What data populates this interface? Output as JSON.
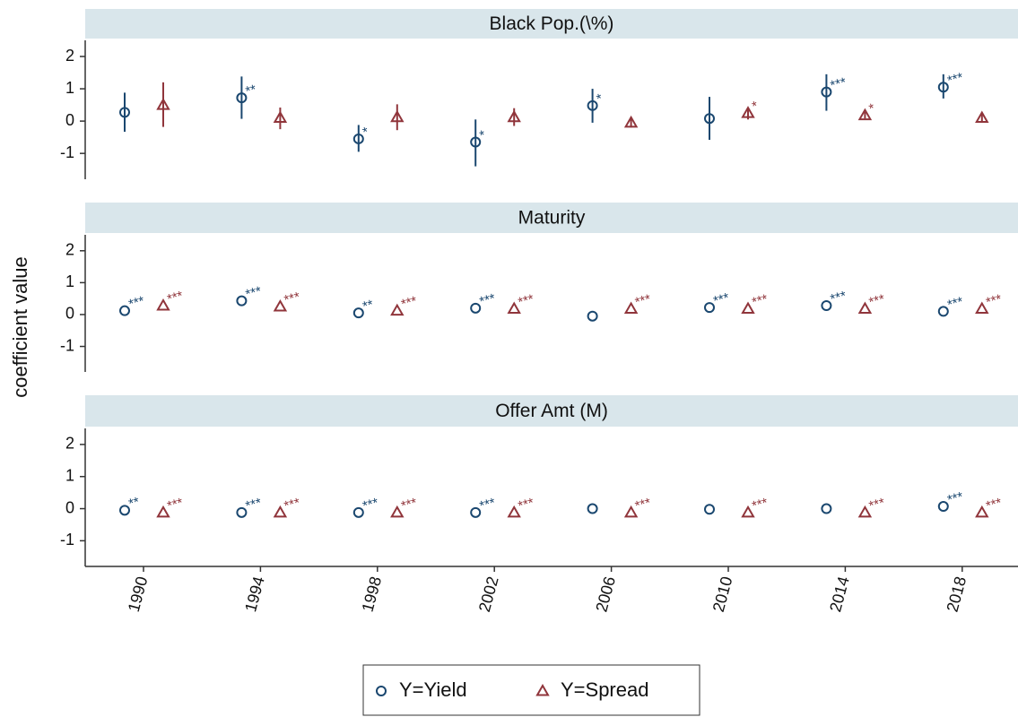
{
  "chart_data": {
    "type": "scatter",
    "ylabel": "coefficient value",
    "categories": [
      "1990",
      "1994",
      "1998",
      "2002",
      "2006",
      "2010",
      "2014",
      "2018"
    ],
    "ylim": [
      -1.8,
      2.5
    ],
    "yticks": [
      -1,
      0,
      1,
      2
    ],
    "series": [
      {
        "name": "Y=Yield",
        "color": "#1a476f",
        "marker": "circle"
      },
      {
        "name": "Y=Spread",
        "color": "#90353b",
        "marker": "triangle"
      }
    ],
    "panels": [
      {
        "title": "Black Pop.(\\%)",
        "series": [
          {
            "values": [
              0.27,
              0.72,
              -0.55,
              -0.65,
              0.48,
              0.08,
              0.9,
              1.05
            ],
            "ci_low": [
              -0.33,
              0.07,
              -0.95,
              -1.4,
              -0.05,
              -0.58,
              0.32,
              0.7
            ],
            "ci_high": [
              0.88,
              1.38,
              -0.12,
              0.05,
              1.0,
              0.75,
              1.45,
              1.45
            ],
            "stars": [
              null,
              "**",
              "*",
              "*",
              "*",
              null,
              "***",
              "***"
            ]
          },
          {
            "values": [
              0.5,
              0.1,
              0.12,
              0.12,
              -0.05,
              0.25,
              0.18,
              0.1
            ],
            "ci_low": [
              -0.18,
              -0.25,
              -0.28,
              -0.15,
              -0.2,
              0.05,
              0.08,
              -0.05
            ],
            "ci_high": [
              1.2,
              0.42,
              0.52,
              0.4,
              0.1,
              0.42,
              0.28,
              0.25
            ],
            "stars": [
              null,
              null,
              null,
              null,
              null,
              "*",
              "*",
              null
            ]
          }
        ]
      },
      {
        "title": "Maturity",
        "series": [
          {
            "values": [
              0.12,
              0.43,
              0.05,
              0.2,
              -0.05,
              0.22,
              0.28,
              0.1
            ],
            "stars": [
              "***",
              "***",
              "**",
              "***",
              null,
              "***",
              "***",
              "***"
            ]
          },
          {
            "values": [
              0.28,
              0.25,
              0.12,
              0.18,
              0.18,
              0.18,
              0.18,
              0.18
            ],
            "stars": [
              "***",
              "***",
              "***",
              "***",
              "***",
              "***",
              "***",
              "***"
            ]
          }
        ]
      },
      {
        "title": "Offer Amt (M)",
        "series": [
          {
            "values": [
              -0.05,
              -0.12,
              -0.12,
              -0.12,
              0,
              -0.02,
              0,
              0.07
            ],
            "stars": [
              "**",
              "***",
              "***",
              "***",
              null,
              null,
              null,
              "***"
            ]
          },
          {
            "values": [
              -0.12,
              -0.12,
              -0.12,
              -0.12,
              -0.12,
              -0.12,
              -0.12,
              -0.12
            ],
            "stars": [
              "***",
              "***",
              "***",
              "***",
              "***",
              "***",
              "***",
              "***"
            ]
          }
        ]
      }
    ]
  }
}
